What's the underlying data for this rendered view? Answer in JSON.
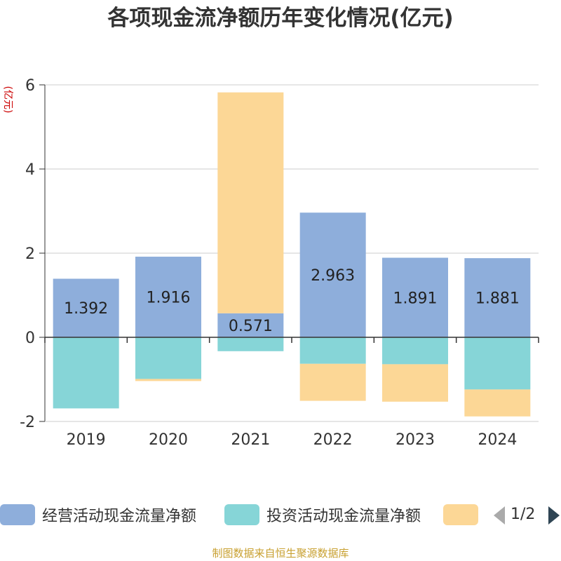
{
  "chart_data": {
    "type": "bar",
    "stacked": true,
    "title": "各项现金流净额历年变化情况(亿元)",
    "ylabel": "(亿元)",
    "categories": [
      "2019",
      "2020",
      "2021",
      "2022",
      "2023",
      "2024"
    ],
    "ylim": [
      -2,
      6
    ],
    "yticks": [
      -2,
      0,
      2,
      4,
      6
    ],
    "grid": true,
    "series": [
      {
        "name": "经营活动现金流量净额",
        "color": "#8eaedb",
        "values": [
          1.392,
          1.916,
          0.571,
          2.963,
          1.891,
          1.881
        ],
        "data_labels": [
          "1.392",
          "1.916",
          "0.571",
          "2.963",
          "1.891",
          "1.881"
        ]
      },
      {
        "name": "投资活动现金流量净额",
        "color": "#86d5d7",
        "values": [
          -1.69,
          -0.99,
          -0.33,
          -0.63,
          -0.64,
          -1.24
        ]
      },
      {
        "name": "",
        "color": "#fcd796",
        "values": [
          0.0,
          -0.05,
          5.25,
          -0.88,
          -0.89,
          -0.64
        ]
      }
    ]
  },
  "legend": {
    "items": [
      {
        "label": "经营活动现金流量净额",
        "color": "#8eaedb"
      },
      {
        "label": "投资活动现金流量净额",
        "color": "#86d5d7"
      },
      {
        "label": "",
        "color": "#fcd796"
      }
    ],
    "page": "1/2",
    "placement": "bottom"
  },
  "source": "制图数据来自恒生聚源数据库"
}
